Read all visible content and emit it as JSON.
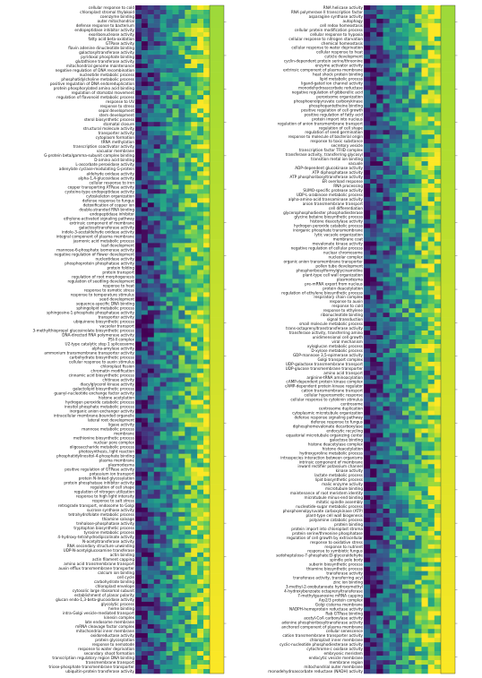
{
  "chart_data": {
    "type": "heatmap",
    "colormap": "viridis",
    "colorbar_ticks": [
      "",
      "",
      "",
      "",
      "",
      "",
      "",
      "",
      "",
      "",
      "",
      "",
      "",
      "",
      "",
      "",
      "",
      "",
      "",
      ""
    ],
    "panels": [
      {
        "rows": [
          "cellular response to cold",
          "chloroplast stromal thylakoid",
          "coenzyme binding",
          "outer mitochondrial",
          "defense response to bacterium",
          "endopeptidase inhibitor activity",
          "exoribonuclease activity",
          "fatty acid beta-oxidation",
          "GTPase activity",
          "flavin adenine dinucleotide binding",
          "galactosyltransferase activity",
          "pyridoxal phosphate binding",
          "glutathione transferase activity",
          "mitochondrial genome maintenance",
          "negative regulation of DNA recombination",
          "nucleotide metabolic process",
          "phosphatidylcholine metabolic process",
          "positive regulation of DNA endoreduplication",
          "protein phosphorylated amino acid binding",
          "regulation of stomatal movement",
          "regulation of flavonoid metabolic process",
          "response to UV",
          "response to stress",
          "sepal development",
          "stem development",
          "sterol biosynthetic process",
          "stomatal closure",
          "structural molecule activity",
          "transporter activity",
          "cytoplasm formation",
          "tRNA methylation",
          "transcription coactivator activity",
          "vacuolar membrane",
          "G-protein beta/gamma-subunit complex binding",
          "D-amino acid binding",
          "L-ascorbate peroxidase activity",
          "adenylate cyclase-modulating G-protein",
          "aldehyde oxidase activity",
          "alpha-1,4-glucosidase activity",
          "cellular response to iron",
          "copper transporting ATPase activity",
          "cysteine-type endopeptidase activity",
          "cytoskeleton organization",
          "defense response to fungus",
          "detoxification of copper ion",
          "double-stranded RNA binding",
          "endopeptidase inhibitor",
          "ethylene-activated signaling pathway",
          "extrinsic component of membrane",
          "galactosyltransferase activity",
          "indole-3-acetaldehyde oxidase activity",
          "integral component of plasma membrane",
          "jasmonic acid metabolic process",
          "leaf development",
          "mannose-6-phosphate isomerase activity",
          "negative regulation of flower development",
          "nucleotidase activity",
          "phosphoprotein phosphatase activity",
          "protein folding",
          "protein transport",
          "regulation of root morphogenesis",
          "regulation of seedling development",
          "response to heat",
          "response to osmotic stress",
          "response to temperature stimulus",
          "seed development",
          "sequence-specific DNA binding",
          "sphingolipid metabolic process",
          "sphingosine-1-phosphate phosphatase activity",
          "transporter activity",
          "ubiquinone biosynthetic process",
          "vacuolar transport",
          "3-methylthiopropyl glucosinolate biosynthetic process",
          "DNA-directed RNA polymerase activity",
          "PSI-II complex",
          "U2-type catalytic step 1 spliceosome",
          "alpha-amylase activity",
          "ammonium transmembrane transporter activity",
          "carbohydrate biosynthetic process",
          "cellular response to auxin stimulus",
          "chloroplast fission",
          "chromatin modification",
          "cinnamic acid biosynthetic process",
          "chitinase activity",
          "diacylglycerol kinase activity",
          "galactolipid biosynthetic process",
          "guanyl-nucleotide exchange factor activity",
          "histone acetylation",
          "hydrogen peroxide catabolic process",
          "inositol phosphate metabolic process",
          "inorganic anion exchanger activity",
          "intracellular membrane-bounded organelle",
          "lateral root development",
          "ligase activity",
          "mannose metabolic process",
          "membrane",
          "methionine biosynthetic process",
          "nuclear pore complex",
          "oligosaccharide metabolic process",
          "photosynthesis, light reaction",
          "phosphatidylinositol-4-phosphate binding",
          "plasma membrane",
          "plasmodesma",
          "positive regulation of GTPase activity",
          "potassium ion transport",
          "protein N-linked glycosylation",
          "protein phosphatase inhibitor activity",
          "regulation of cell shape",
          "regulation of nitrogen utilization",
          "response to high light intensity",
          "response to salt stress",
          "retrograde transport, endosome to Golgi",
          "sucrose synthase activity",
          "tetrahydrofolate metabolic process",
          "thiamine salvage",
          "trehalose-phosphatase activity",
          "tryptophan biosynthetic process",
          "tyrosine metabolic process",
          "4-hydroxy-tetrahydrodipicolinate activity",
          "N-acetyltransferase activity",
          "RNA secondary structure unwinding",
          "UDP-N-acetylglucosamine transferase",
          "actin binding",
          "actin filament capping",
          "amino acid transmembrane transport",
          "auxin efflux transmembrane transporter",
          "calcium ion binding",
          "cell cycle",
          "carbohydrate binding",
          "chloroplast envelope",
          "cytosolic large ribosomal subunit",
          "establishment of planar polarity",
          "glucan endo-1,3-beta-glucosidase activity",
          "glycolytic process",
          "heme binding",
          "intra-Golgi vesicle-mediated transport",
          "kinesin complex",
          "late endosome membrane",
          "mRNA cleavage factor complex",
          "mitochondrial inner membrane",
          "oxidoreductase activity",
          "protein glycosylation",
          "response to nematode",
          "response to water deprivation",
          "secondary shoot formation",
          "transcription regulatory region DNA binding",
          "transmembrane transport",
          "triose-phosphate transmembrane transporter",
          "ubiquitin-protein transferase activity"
        ]
      },
      {
        "rows": [
          "RNA helicase activity",
          "RNA polymerase II transcription factor",
          "asparagine synthase activity",
          "autophagy",
          "cell redox homeostasis",
          "cellular protein modification process",
          "cellular response to hypoxia",
          "cellular response to nitrogen starvation",
          "chemical homeostasis",
          "cellular response to water deprivation",
          "cellular response to heat",
          "cuticle development",
          "cyclin-dependent protein serine/threonine",
          "enzyme activator activity",
          "extrinsic component of plasma membrane",
          "heat shock protein binding",
          "lipid metabolic process",
          "ligand-gated ion channel activity",
          "monodehydroascorbate reductase",
          "negative regulation of gibberellic acid",
          "peroxisome organization",
          "phosphoenolpyruvate carboxykinase",
          "phosphopantetheine binding",
          "positive regulation of cell growth",
          "positive regulation of fatty acid",
          "protein import into nucleus",
          "regulation of anion transmembrane transport",
          "regulation of cell shape",
          "regulation of seed germination",
          "response to molecule of bacterial origin",
          "response to toxic substance",
          "secretory vesicle",
          "transcription factor TFIID complex",
          "transferase activity, transferring glycosyl",
          "transition metal ion binding",
          "vacuole",
          "ADP-dependent glucokinase activity",
          "ATP diphosphatase activity",
          "ATP phosphoribosyltransferase activity",
          "ER overload response",
          "RNA processing",
          "SUMO-specific protease activity",
          "UDP-L-arabinose metabolic process",
          "alpha-amino-acid transaminase activity",
          "anion transmembrane transport",
          "cell differentiation",
          "glycerophosphodiester phosphodiesterase",
          "glycine betaine biosynthetic process",
          "histone deacetylase activity",
          "hydrogen peroxide catabolic process",
          "inorganic phosphate transmembrane",
          "lytic vacuole organization",
          "membrane coat",
          "mevalonate kinase activity",
          "negative regulation of cellular process",
          "nuclear chromosome",
          "nucleolar complex",
          "organic anion transmembrane transporter",
          "pollen tube development",
          "phosphoribosylformylglycinamidine",
          "plant-type cell wall organization",
          "plasmodesma",
          "pre-mRNA export from nucleus",
          "protein deacetylation",
          "regulation of ethylene biosynthetic process",
          "respiratory chain complex",
          "response to auxin",
          "response to cold",
          "response to ethylene",
          "ribonucleotide binding",
          "signal transduction",
          "small molecule metabolic process",
          "trans-octaprenyltranstransferase activity",
          "transferase activity, transferring amino",
          "unidimensional cell growth",
          "viral mechanism",
          "xyloglucan metabolic process",
          "D-xylose metabolic process",
          "GDP-mannose 3,5-epimerase activity",
          "Golgi transport complex",
          "UDP-galactose transmembrane transport",
          "UDP-glucose transmembrane transporter",
          "amino acid transport",
          "arginine-tRNA aminoacylation",
          "cAMP-dependent protein kinase complex",
          "cAMP-dependent protein kinase regulator",
          "cation transmembrane transport",
          "cellular hyperosmotic response",
          "cellular response to cytokinin stimulus",
          "centrosome",
          "centrosome duplication",
          "cytoplasmic microtubule organization",
          "defense response signaling pathway",
          "defense response to fungus",
          "diphosphomevalonate decarboxylase",
          "endocytic recycling",
          "equatorial microtubule organizing center",
          "galactose binding",
          "histone deacetylase complex",
          "histone deacetylation",
          "hydroxyproline metabolic process",
          "intraspecies interaction between organisms",
          "intrinsic component of membrane",
          "inward rectifier potassium channel",
          "kinase activity",
          "lactate metabolic process",
          "lipid biosynthetic process",
          "malic enzyme activity",
          "microtubule binding",
          "maintenance of root meristem identity",
          "microtubule minus-end binding",
          "mitotic spindle assembly",
          "nucleotide-sugar metabolic process",
          "phosphoenolpyruvate carboxykinase (ATP)",
          "plant-type cell wall biogenesis",
          "polyamine catabolic process",
          "protein binding",
          "protein import into chloroplast stroma",
          "protein serine/threonine phosphatase",
          "regulation of cell growth by extracellular",
          "response to oxidative stress",
          "response to nutrient",
          "response to symbiotic fungus",
          "sedoheptulose-7-phosphate:D-glyceraldehyde",
          "spindle pole body",
          "suberin biosynthetic process",
          "thiamine biosynthetic process",
          "transferase activity",
          "transferase activity, transferring acyl",
          "zinc ion binding",
          "3-methyl-2-oxobutanoate hydroxymethyl",
          "4-hydroxybenzoate octaprenyltransferase",
          "7-methylguanosine mRNA capping",
          "Arp2/3 protein complex",
          "Golgi cisterna membrane",
          "NADPH-hemoprotein reductase activity",
          "Rab GTPase binding",
          "acetyl-CoA carboxylase activity",
          "adenine phosphoribosyltransferase activity",
          "anchored component of plasma membrane",
          "cellular senescence",
          "cation transmembrane transporter activity",
          "chloroplast inner membrane",
          "cyclic-nucleotide phosphodiesterase activity",
          "cytochrome-c oxidase activity",
          "embryonic meristem",
          "endocytic vesicle membrane",
          "membrane region",
          "mitochondrial outer membrane",
          "monodehydroascorbate reductase (NADH) activity"
        ]
      }
    ]
  }
}
